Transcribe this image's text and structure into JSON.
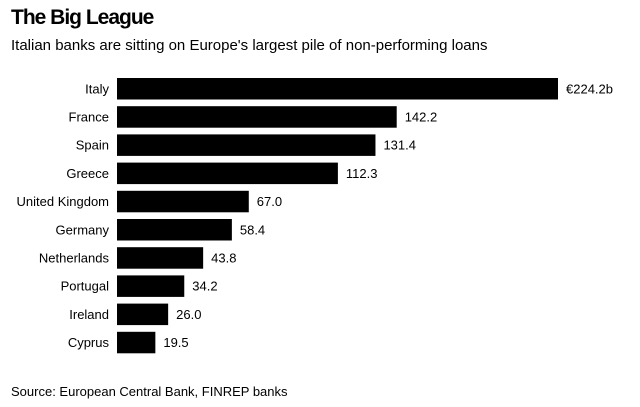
{
  "chart_data": {
    "type": "bar",
    "orientation": "horizontal",
    "title": "The Big League",
    "subtitle": "Italian banks are sitting on Europe's largest pile of non-performing loans",
    "source": "Source: European Central Bank, FINREP banks",
    "categories": [
      "Italy",
      "France",
      "Spain",
      "Greece",
      "United Kingdom",
      "Germany",
      "Netherlands",
      "Portugal",
      "Ireland",
      "Cyprus"
    ],
    "values": [
      224.2,
      142.2,
      131.4,
      112.3,
      67.0,
      58.4,
      43.8,
      34.2,
      26.0,
      19.5
    ],
    "value_labels": [
      "€224.2b",
      "142.2",
      "131.4",
      "112.3",
      "67.0",
      "58.4",
      "43.8",
      "34.2",
      "26.0",
      "19.5"
    ],
    "xlim": [
      0,
      224.2
    ],
    "bar_color": "#000000",
    "grid": false,
    "legend": false
  }
}
